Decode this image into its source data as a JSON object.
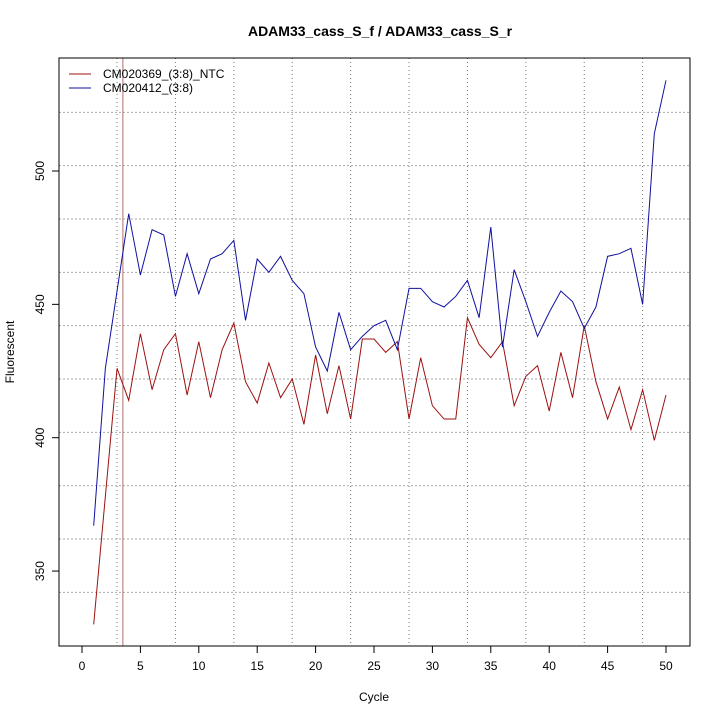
{
  "chart_data": {
    "type": "line",
    "title": "ADAM33_cass_S_f / ADAM33_cass_S_r",
    "xlabel": "Cycle",
    "ylabel": "Fluorescent",
    "xlim": [
      -2,
      52
    ],
    "ylim": [
      322,
      542
    ],
    "x_ticks": [
      0,
      5,
      10,
      15,
      20,
      25,
      30,
      35,
      40,
      45,
      50
    ],
    "y_ticks": [
      350,
      400,
      450,
      500
    ],
    "grid_x": [
      3,
      8,
      13,
      18,
      23,
      28,
      33,
      38,
      43,
      48
    ],
    "grid_y": [
      342,
      362,
      382,
      402,
      422,
      442,
      462,
      482,
      502,
      522
    ],
    "threshold_cycle": 3.5,
    "threshold_color": "#b07070",
    "legend_position": "top-left",
    "x": [
      1,
      2,
      3,
      4,
      5,
      6,
      7,
      8,
      9,
      10,
      11,
      12,
      13,
      14,
      15,
      16,
      17,
      18,
      19,
      20,
      21,
      22,
      23,
      24,
      25,
      26,
      27,
      28,
      29,
      30,
      31,
      32,
      33,
      34,
      35,
      36,
      37,
      38,
      39,
      40,
      41,
      42,
      43,
      44,
      45,
      46,
      47,
      48,
      49,
      50
    ],
    "series": [
      {
        "name": "CM020369_(3:8)_NTC",
        "color": "#9b1010",
        "values": [
          330,
          378,
          426,
          414,
          439,
          418,
          433,
          439,
          416,
          436,
          415,
          433,
          443,
          421,
          413,
          428,
          415,
          422,
          405,
          431,
          409,
          427,
          407,
          437,
          437,
          432,
          436,
          407,
          430,
          412,
          407,
          407,
          445,
          435,
          430,
          436,
          412,
          423,
          427,
          410,
          432,
          415,
          442,
          421,
          407,
          419,
          403,
          418,
          399,
          416
        ]
      },
      {
        "name": "CM020412_(3:8)",
        "color": "#1010a0",
        "values": [
          367,
          426,
          455,
          484,
          461,
          478,
          476,
          453,
          469,
          454,
          467,
          469,
          474,
          444,
          467,
          462,
          468,
          459,
          454,
          434,
          425,
          447,
          433,
          438,
          442,
          444,
          433,
          456,
          456,
          451,
          449,
          453,
          459,
          445,
          479,
          434,
          463,
          451,
          438,
          447,
          455,
          451,
          441,
          449,
          468,
          469,
          471,
          450,
          514,
          534
        ]
      }
    ]
  }
}
